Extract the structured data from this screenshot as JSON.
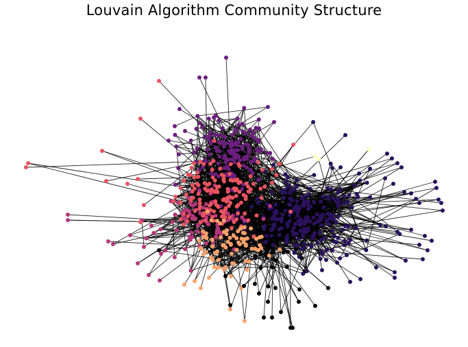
{
  "title": "Louvain Algorithm Community Structure",
  "chart_data": {
    "type": "network",
    "title": "Louvain Algorithm Community Structure",
    "edge_color": "#000000",
    "communities": [
      {
        "id": "black",
        "color": "#000004"
      },
      {
        "id": "dark-indigo",
        "color": "#2a115c"
      },
      {
        "id": "purple",
        "color": "#6b1f7d"
      },
      {
        "id": "magenta",
        "color": "#b5367a"
      },
      {
        "id": "coral",
        "color": "#e8545f"
      },
      {
        "id": "peach",
        "color": "#f9a26a"
      },
      {
        "id": "pale-yellow",
        "color": "#fcfdbf"
      }
    ]
  }
}
